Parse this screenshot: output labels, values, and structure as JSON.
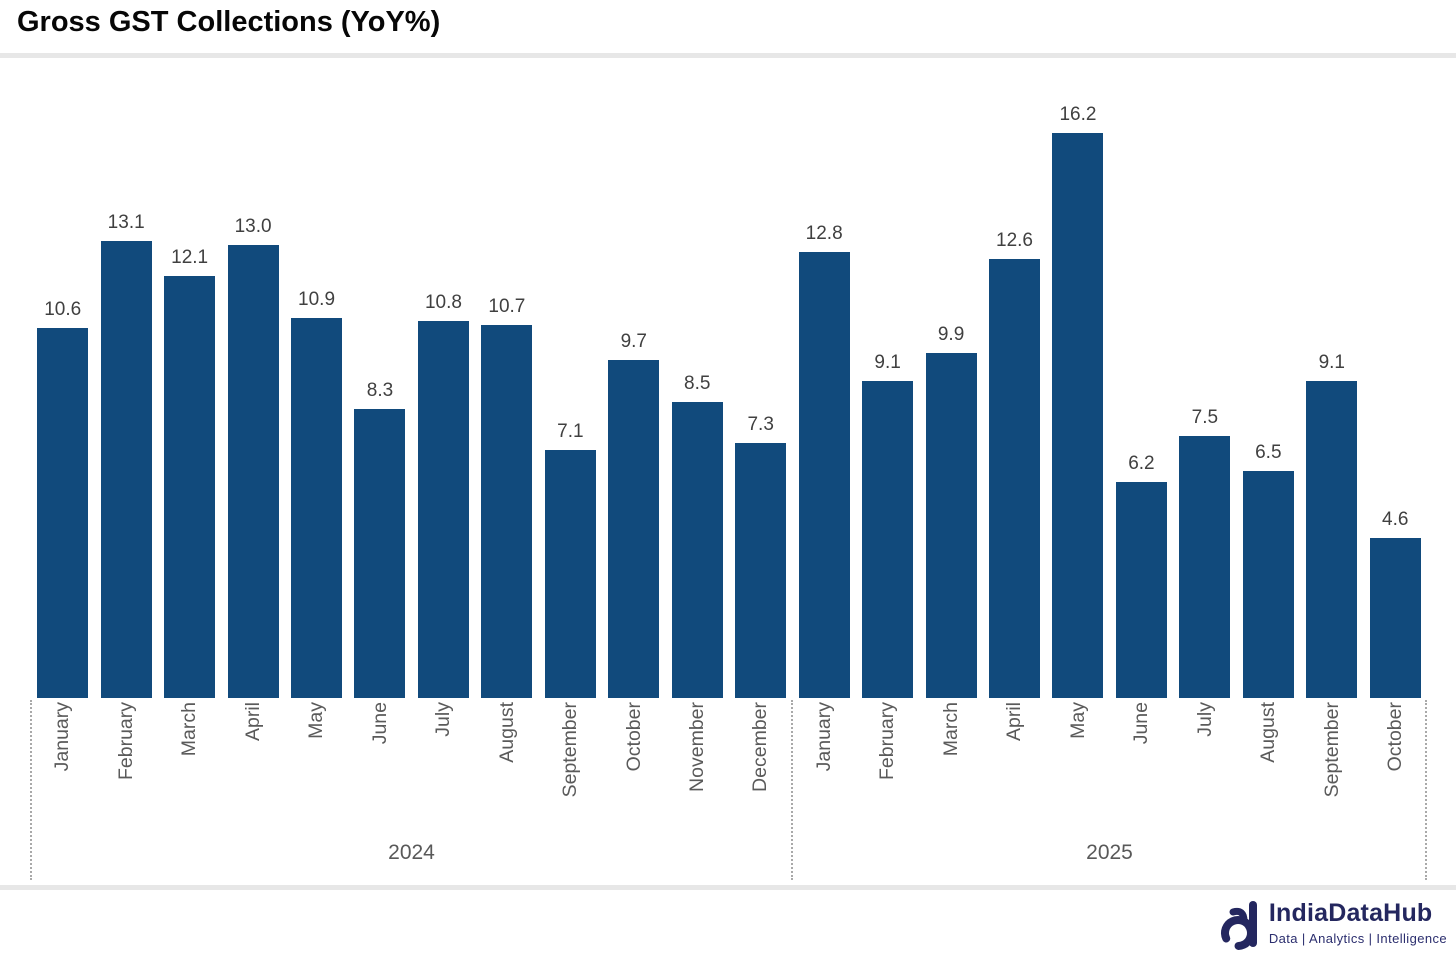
{
  "page": {
    "title": "Gross GST Collections (YoY%)"
  },
  "chart_data": {
    "type": "bar",
    "title": "Gross GST Collections (YoY%)",
    "xlabel": "",
    "ylabel": "",
    "ylim": [
      0,
      17
    ],
    "grid": false,
    "legend": false,
    "data_labels": true,
    "bar_color": "#114a7c",
    "value_label_color": "#404040",
    "axis_label_color": "#5a5a5a",
    "groups": [
      {
        "year": "2024",
        "categories": [
          "January",
          "February",
          "March",
          "April",
          "May",
          "June",
          "July",
          "August",
          "September",
          "October",
          "November",
          "December"
        ],
        "values": [
          10.6,
          13.1,
          12.1,
          13.0,
          10.9,
          8.3,
          10.8,
          10.7,
          7.1,
          9.7,
          8.5,
          7.3
        ],
        "labels": [
          "10.6",
          "13.1",
          "12.1",
          "13.0",
          "10.9",
          "8.3",
          "10.8",
          "10.7",
          "7.1",
          "9.7",
          "8.5",
          "7.3"
        ]
      },
      {
        "year": "2025",
        "categories": [
          "January",
          "February",
          "March",
          "April",
          "May",
          "June",
          "July",
          "August",
          "September",
          "October"
        ],
        "values": [
          12.8,
          9.1,
          9.9,
          12.6,
          16.2,
          6.2,
          7.5,
          6.5,
          9.1,
          4.6
        ],
        "labels": [
          "12.8",
          "9.1",
          "9.9",
          "12.6",
          "16.2",
          "6.2",
          "7.5",
          "6.5",
          "9.1",
          "4.6"
        ]
      }
    ]
  },
  "footer": {
    "brand": "IndiaDataHub",
    "tagline": "Data | Analytics | Intelligence",
    "brand_color": "#24275f"
  }
}
